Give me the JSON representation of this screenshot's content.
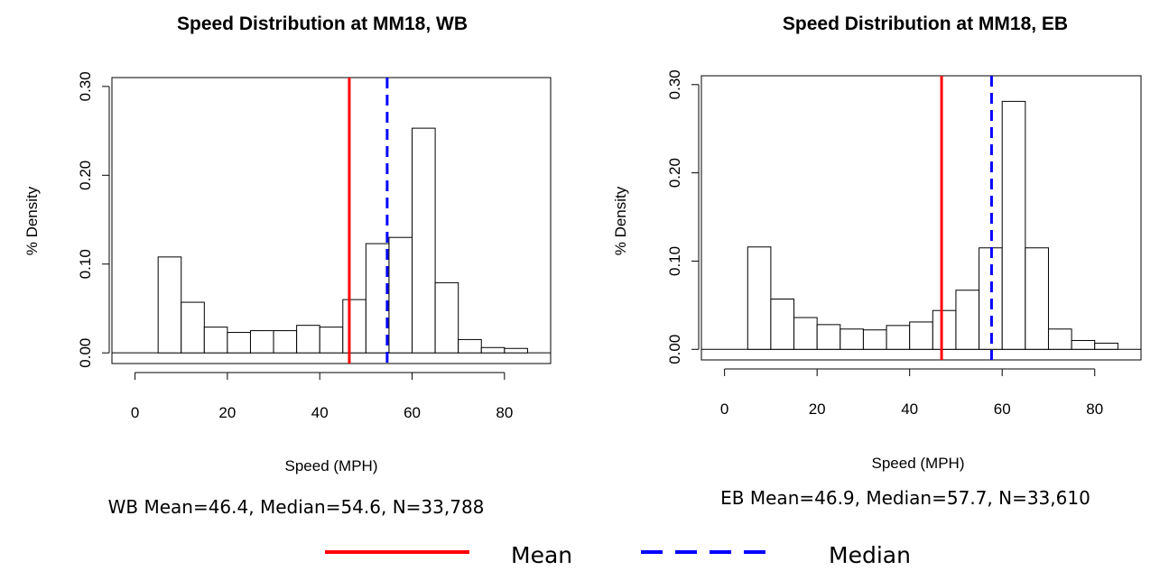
{
  "chart_data": [
    {
      "type": "bar",
      "title": "Speed Distribution at MM18, WB",
      "xlabel": "Speed (MPH)",
      "ylabel": "% Density",
      "summary": "WB Mean=46.4,  Median=54.6,  N=33,788",
      "bin_width": 5,
      "bins_start": [
        5,
        10,
        15,
        20,
        25,
        30,
        35,
        40,
        45,
        50,
        55,
        60,
        65,
        70,
        75,
        80
      ],
      "values": [
        0.108,
        0.057,
        0.029,
        0.023,
        0.025,
        0.025,
        0.031,
        0.029,
        0.06,
        0.123,
        0.13,
        0.253,
        0.079,
        0.015,
        0.006,
        0.005
      ],
      "xlim": [
        -5,
        90
      ],
      "ylim": [
        -0.012,
        0.31
      ],
      "xticks": [
        0,
        20,
        40,
        60,
        80
      ],
      "xtick_labels": [
        "0",
        "20",
        "40",
        "60",
        "80"
      ],
      "yticks": [
        0,
        0.1,
        0.2,
        0.3
      ],
      "ytick_labels": [
        "0.00",
        "0.10",
        "0.20",
        "0.30"
      ],
      "mean": 46.4,
      "median": 54.6,
      "colors": {
        "mean": "#ff0000",
        "median": "#0000ff"
      }
    },
    {
      "type": "bar",
      "title": "Speed Distribution at MM18, EB",
      "xlabel": "Speed (MPH)",
      "ylabel": "% Density",
      "summary": "EB Mean=46.9,  Median=57.7,  N=33,610",
      "bin_width": 5,
      "bins_start": [
        5,
        10,
        15,
        20,
        25,
        30,
        35,
        40,
        45,
        50,
        55,
        60,
        65,
        70,
        75,
        80
      ],
      "values": [
        0.116,
        0.057,
        0.036,
        0.028,
        0.023,
        0.022,
        0.027,
        0.031,
        0.044,
        0.067,
        0.115,
        0.281,
        0.115,
        0.023,
        0.01,
        0.007
      ],
      "xlim": [
        -5,
        90
      ],
      "ylim": [
        -0.012,
        0.31
      ],
      "xticks": [
        0,
        20,
        40,
        60,
        80
      ],
      "xtick_labels": [
        "0",
        "20",
        "40",
        "60",
        "80"
      ],
      "yticks": [
        0,
        0.1,
        0.2,
        0.3
      ],
      "ytick_labels": [
        "0.00",
        "0.10",
        "0.20",
        "0.30"
      ],
      "mean": 46.9,
      "median": 57.7,
      "colors": {
        "mean": "#ff0000",
        "median": "#0000ff"
      }
    }
  ],
  "legend": {
    "mean_label": "Mean",
    "median_label": "Median"
  }
}
